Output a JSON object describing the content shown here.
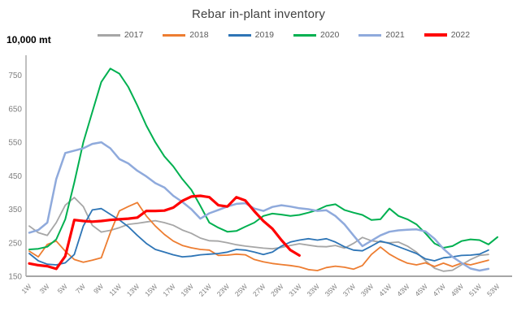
{
  "title": "Rebar in-plant inventory",
  "y_axis_unit_label": "10,000 mt",
  "chart_data": {
    "type": "line",
    "title": "Rebar in-plant inventory",
    "ylabel": "10,000 mt",
    "xlabel": "",
    "ylim": [
      150,
      800
    ],
    "yticks": [
      150,
      250,
      350,
      450,
      550,
      650,
      750
    ],
    "grid": false,
    "legend_position": "top",
    "x_unit": "week",
    "xtick_labels": [
      "1W",
      "3W",
      "5W",
      "7W",
      "9W",
      "11W",
      "13W",
      "15W",
      "17W",
      "19W",
      "21W",
      "23W",
      "25W",
      "27W",
      "29W",
      "31W",
      "33W",
      "35W",
      "37W",
      "39W",
      "41W",
      "43W",
      "45W",
      "47W",
      "49W",
      "51W",
      "53W"
    ],
    "colors": {
      "axis": "#A6A6A6",
      "tick_text": "#7F7F7F",
      "title_text": "#404040",
      "legend_text": "#595959"
    },
    "series": [
      {
        "name": "2017",
        "color": "#A6A6A6",
        "width": 1.8,
        "start_week": 1,
        "values": [
          300,
          280,
          272,
          310,
          362,
          385,
          358,
          302,
          282,
          287,
          295,
          305,
          308,
          312,
          316,
          310,
          302,
          288,
          278,
          264,
          256,
          255,
          250,
          244,
          240,
          237,
          234,
          232,
          236,
          242,
          247,
          243,
          239,
          238,
          242,
          234,
          248,
          266,
          256,
          252,
          250,
          252,
          240,
          222,
          196,
          174,
          165,
          168,
          184,
          200,
          212,
          215
        ]
      },
      {
        "name": "2018",
        "color": "#ED7D31",
        "width": 1.8,
        "start_week": 1,
        "values": [
          225,
          208,
          245,
          255,
          225,
          200,
          192,
          198,
          205,
          280,
          345,
          358,
          370,
          330,
          300,
          275,
          255,
          242,
          235,
          230,
          228,
          212,
          213,
          216,
          214,
          200,
          193,
          188,
          185,
          182,
          178,
          170,
          167,
          176,
          180,
          177,
          171,
          182,
          215,
          237,
          216,
          201,
          189,
          184,
          190,
          179,
          189,
          179,
          189,
          184,
          191,
          198
        ]
      },
      {
        "name": "2019",
        "color": "#2E75B6",
        "width": 1.8,
        "start_week": 1,
        "values": [
          218,
          196,
          186,
          184,
          190,
          215,
          300,
          348,
          352,
          335,
          318,
          298,
          272,
          248,
          230,
          222,
          214,
          208,
          210,
          214,
          216,
          218,
          222,
          230,
          228,
          222,
          215,
          222,
          240,
          252,
          258,
          262,
          258,
          262,
          252,
          238,
          228,
          226,
          240,
          255,
          248,
          238,
          228,
          218,
          202,
          196,
          205,
          208,
          212,
          213,
          216,
          228
        ]
      },
      {
        "name": "2020",
        "color": "#00B050",
        "width": 2,
        "start_week": 1,
        "values": [
          230,
          232,
          238,
          260,
          320,
          430,
          550,
          640,
          730,
          770,
          755,
          715,
          660,
          600,
          550,
          508,
          478,
          440,
          408,
          360,
          310,
          295,
          283,
          285,
          298,
          310,
          330,
          337,
          334,
          330,
          333,
          340,
          348,
          360,
          365,
          348,
          340,
          333,
          318,
          320,
          352,
          330,
          320,
          305,
          278,
          248,
          235,
          240,
          255,
          260,
          258,
          245,
          267
        ]
      },
      {
        "name": "2021",
        "color": "#8FAADC",
        "width": 2.5,
        "start_week": 1,
        "values": [
          280,
          288,
          310,
          440,
          518,
          525,
          532,
          545,
          550,
          532,
          500,
          487,
          465,
          448,
          428,
          415,
          390,
          372,
          350,
          322,
          338,
          348,
          358,
          366,
          368,
          352,
          345,
          357,
          362,
          358,
          353,
          350,
          345,
          347,
          330,
          305,
          272,
          240,
          256,
          272,
          283,
          287,
          289,
          290,
          284,
          262,
          232,
          208,
          190,
          173,
          167,
          172
        ]
      },
      {
        "name": "2022",
        "color": "#FF0000",
        "width": 3.2,
        "start_week": 1,
        "values": [
          188,
          183,
          180,
          172,
          210,
          318,
          315,
          313,
          315,
          318,
          320,
          322,
          325,
          345,
          345,
          346,
          355,
          375,
          388,
          390,
          386,
          362,
          358,
          386,
          376,
          344,
          315,
          292,
          258,
          228,
          212
        ]
      }
    ]
  }
}
